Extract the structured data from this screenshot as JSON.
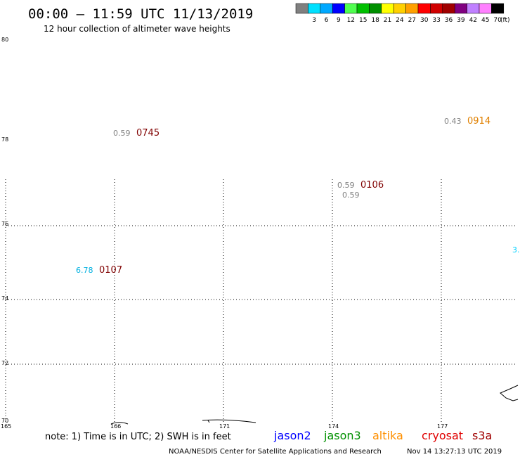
{
  "header": {
    "title": "00:00 – 11:59 UTC 11/13/2019",
    "subtitle": "12 hour collection of altimeter wave heights"
  },
  "legend": {
    "swatches": [
      {
        "color": "#808080",
        "label": ""
      },
      {
        "color": "#00e0ff",
        "label": "3"
      },
      {
        "color": "#00a8ff",
        "label": "6"
      },
      {
        "color": "#0000ff",
        "label": "9"
      },
      {
        "color": "#50ff50",
        "label": "12"
      },
      {
        "color": "#00c000",
        "label": "15"
      },
      {
        "color": "#009000",
        "label": "18"
      },
      {
        "color": "#ffff00",
        "label": "21"
      },
      {
        "color": "#ffd000",
        "label": "24"
      },
      {
        "color": "#ffa000",
        "label": "27"
      },
      {
        "color": "#ff0000",
        "label": "30"
      },
      {
        "color": "#d00000",
        "label": "33"
      },
      {
        "color": "#a00000",
        "label": "36"
      },
      {
        "color": "#800080",
        "label": "39"
      },
      {
        "color": "#c080ff",
        "label": "42"
      },
      {
        "color": "#ff80ff",
        "label": "45"
      },
      {
        "color": "#000000",
        "label": "70"
      }
    ],
    "unit": "(ft)"
  },
  "map": {
    "lat_labels": [
      "80",
      "78",
      "76",
      "74",
      "72",
      "70"
    ],
    "lon_labels": [
      "165",
      "166",
      "171",
      "174",
      "177"
    ],
    "observations": [
      {
        "swh": "0.59",
        "swh_color": "#808080",
        "time": "0745",
        "time_color": "#800000"
      },
      {
        "swh": "0.43",
        "swh_color": "#808080",
        "time": "0914",
        "time_color": "#e08000"
      },
      {
        "swh": "0.59",
        "swh_color": "#808080",
        "time": "0106",
        "time_color": "#800000"
      },
      {
        "swh": "0.59",
        "swh_color": "#808080",
        "time": "",
        "time_color": "#800000"
      },
      {
        "swh": "6.78",
        "swh_color": "#00b0e0",
        "time": "0107",
        "time_color": "#800000"
      },
      {
        "swh": "3.",
        "swh_color": "#00d0ff",
        "time": "",
        "time_color": "#800000"
      }
    ]
  },
  "footer": {
    "note": "note: 1) Time is in UTC; 2) SWH is in feet",
    "satellites": [
      {
        "name": "jason2",
        "color": "#0000ff"
      },
      {
        "name": "jason3",
        "color": "#009000"
      },
      {
        "name": "altika",
        "color": "#ff9000"
      },
      {
        "name": "cryosat",
        "color": "#e00000"
      },
      {
        "name": "s3a",
        "color": "#a00000"
      }
    ],
    "credit": "NOAA/NESDIS Center for Satellite Applications and Research",
    "timestamp": "Nov 14 13:27:13 UTC 2019"
  }
}
